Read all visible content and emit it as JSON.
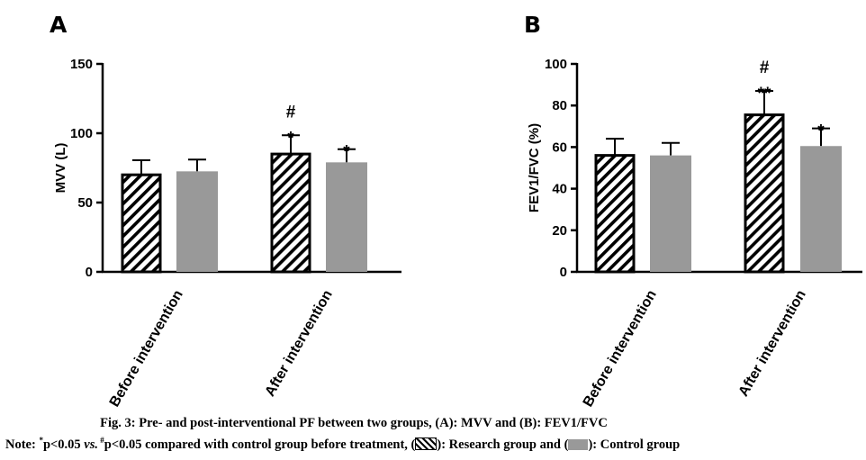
{
  "chart_data": [
    {
      "type": "bar",
      "panel": "A",
      "categories": [
        "Before intervention",
        "After intervention"
      ],
      "series": [
        {
          "name": "Research group",
          "values": [
            70,
            85
          ],
          "errors": [
            10.5,
            13.5
          ],
          "pattern": "hatched"
        },
        {
          "name": "Control group",
          "values": [
            72.5,
            79
          ],
          "errors": [
            8.5,
            9.5
          ],
          "color": "#999999"
        }
      ],
      "ylabel": "MVV (L)",
      "xlabel": "",
      "ylim": [
        0,
        150
      ],
      "yticks": [
        0,
        50,
        100,
        150
      ],
      "annotations": [
        {
          "category": 1,
          "series": 0,
          "lines": [
            "#",
            "*"
          ]
        },
        {
          "category": 1,
          "series": 1,
          "lines": [
            "*"
          ]
        }
      ],
      "grid": false,
      "legend": "none"
    },
    {
      "type": "bar",
      "panel": "B",
      "categories": [
        "Before intervention",
        "After intervention"
      ],
      "series": [
        {
          "name": "Research group",
          "values": [
            56,
            75.5
          ],
          "errors": [
            8,
            11.5
          ],
          "pattern": "hatched"
        },
        {
          "name": "Control group",
          "values": [
            56,
            60.5
          ],
          "errors": [
            6,
            8.5
          ],
          "color": "#999999"
        }
      ],
      "ylabel": "FEV1/FVC (%)",
      "xlabel": "",
      "ylim": [
        0,
        100
      ],
      "yticks": [
        0,
        20,
        40,
        60,
        80,
        100
      ],
      "annotations": [
        {
          "category": 1,
          "series": 0,
          "lines": [
            "#",
            "**"
          ]
        },
        {
          "category": 1,
          "series": 1,
          "lines": [
            "*"
          ]
        }
      ],
      "grid": false,
      "legend": "none"
    }
  ],
  "caption": {
    "title": "Fig. 3: Pre- and post-interventional PF between two groups, (A): MVV and (B): FEV1/FVC",
    "note_prefix": "Note: ",
    "note_star_sup": "*",
    "note_part1": "p<0.05 ",
    "note_vs": "vs.",
    "note_hash_sup": " #",
    "note_part2": "p<0.05 compared with control group before treatment, (",
    "note_part3": "): Research group and (",
    "note_part4": "): Control group"
  }
}
